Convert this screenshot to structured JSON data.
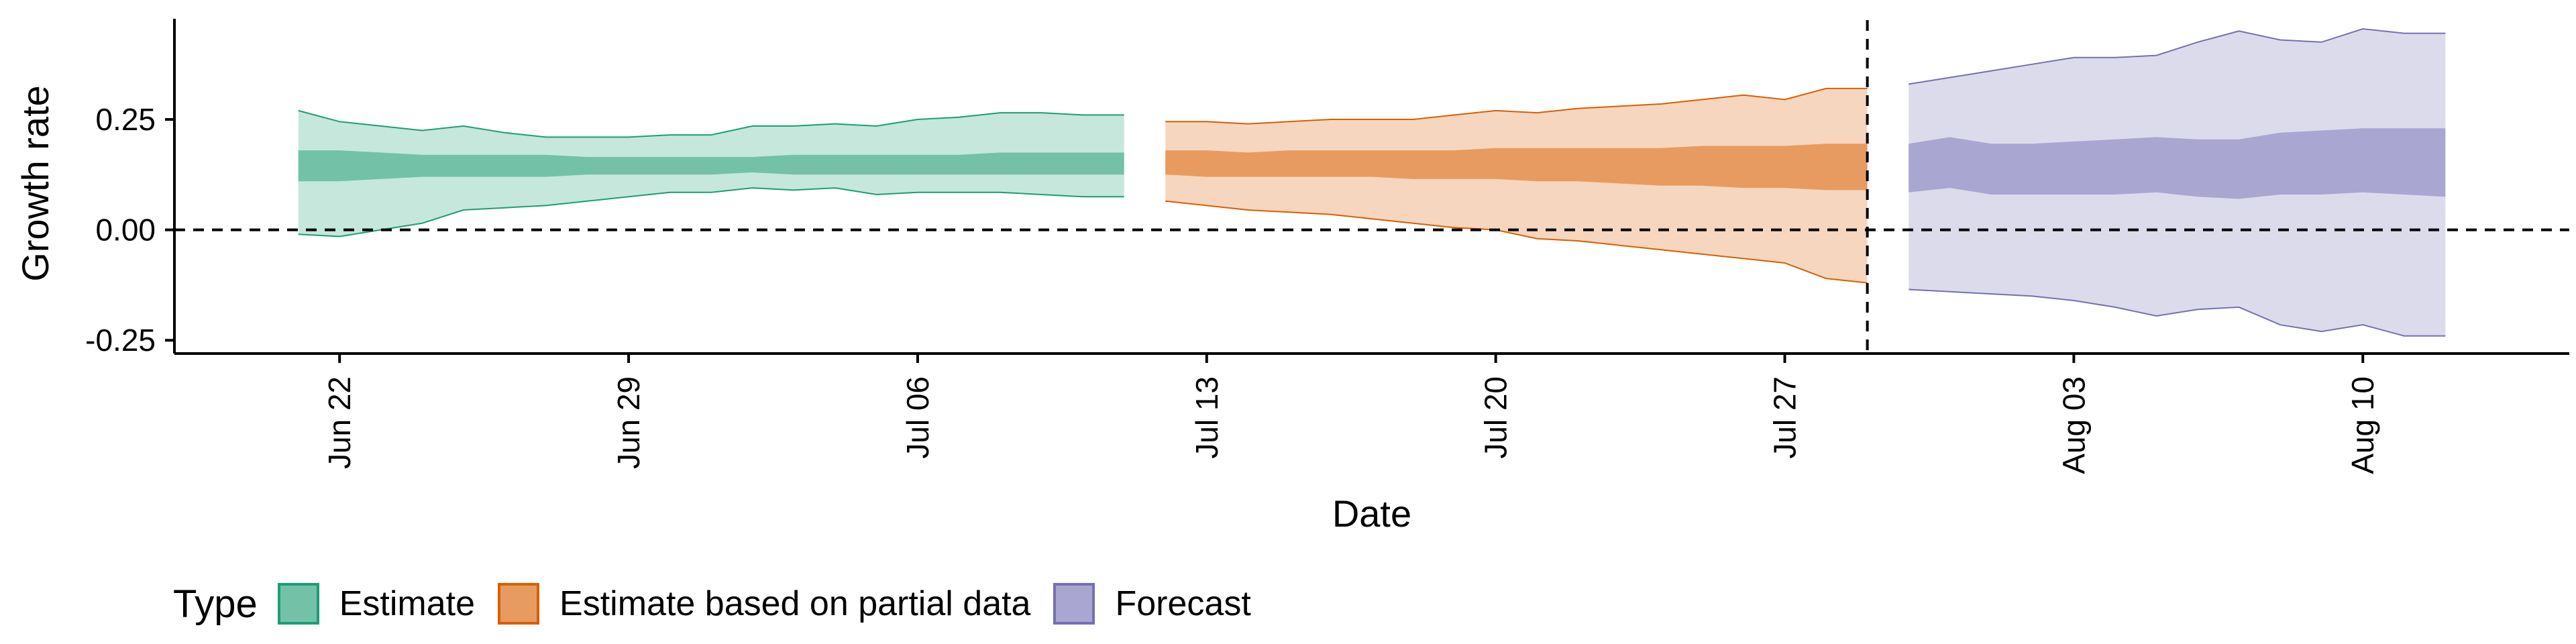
{
  "chart_data": {
    "type": "area",
    "xlabel": "Date",
    "ylabel": "Growth rate",
    "x_tick_labels": [
      "Jun 22",
      "Jun 29",
      "Jul 06",
      "Jul 13",
      "Jul 20",
      "Jul 27",
      "Aug 03",
      "Aug 10"
    ],
    "x_tick_dates": [
      "2020-06-22",
      "2020-06-29",
      "2020-07-06",
      "2020-07-13",
      "2020-07-20",
      "2020-07-27",
      "2020-08-03",
      "2020-08-10"
    ],
    "xlim": [
      "2020-06-18",
      "2020-08-15"
    ],
    "y_ticks": [
      -0.25,
      0.0,
      0.25
    ],
    "y_tick_labels": [
      "-0.25",
      "0.00",
      "0.25"
    ],
    "ylim": [
      -0.28,
      0.49
    ],
    "reference_lines": {
      "horizontal_y": 0,
      "vertical_x": "2020-07-29"
    },
    "grid": false,
    "legend": {
      "title": "Type",
      "position": "bottom-left"
    },
    "series": [
      {
        "name": "Estimate",
        "fill_color": "#1b9e77",
        "light_fill_color": "#c6e7dc",
        "mid_fill_color": "#73c2a8",
        "x": [
          "2020-06-21",
          "2020-06-22",
          "2020-06-23",
          "2020-06-24",
          "2020-06-25",
          "2020-06-26",
          "2020-06-27",
          "2020-06-28",
          "2020-06-29",
          "2020-06-30",
          "2020-07-01",
          "2020-07-02",
          "2020-07-03",
          "2020-07-04",
          "2020-07-05",
          "2020-07-06",
          "2020-07-07",
          "2020-07-08",
          "2020-07-09",
          "2020-07-10",
          "2020-07-11"
        ],
        "lower_90": [
          -0.01,
          -0.015,
          0.0,
          0.015,
          0.045,
          0.05,
          0.055,
          0.065,
          0.075,
          0.085,
          0.085,
          0.095,
          0.09,
          0.095,
          0.08,
          0.085,
          0.085,
          0.085,
          0.08,
          0.075,
          0.075
        ],
        "upper_90": [
          0.27,
          0.245,
          0.235,
          0.225,
          0.235,
          0.22,
          0.21,
          0.21,
          0.21,
          0.215,
          0.215,
          0.235,
          0.235,
          0.24,
          0.235,
          0.25,
          0.255,
          0.265,
          0.265,
          0.26,
          0.26
        ],
        "lower_50": [
          0.11,
          0.11,
          0.115,
          0.12,
          0.12,
          0.12,
          0.12,
          0.125,
          0.125,
          0.125,
          0.125,
          0.13,
          0.125,
          0.125,
          0.125,
          0.125,
          0.125,
          0.125,
          0.125,
          0.125,
          0.125
        ],
        "upper_50": [
          0.18,
          0.18,
          0.175,
          0.17,
          0.17,
          0.17,
          0.17,
          0.165,
          0.165,
          0.165,
          0.165,
          0.165,
          0.17,
          0.17,
          0.17,
          0.17,
          0.17,
          0.175,
          0.175,
          0.175,
          0.175
        ]
      },
      {
        "name": "Estimate based on partial data",
        "fill_color": "#d95f02",
        "light_fill_color": "#f6d6bf",
        "mid_fill_color": "#e89b60",
        "x": [
          "2020-07-12",
          "2020-07-13",
          "2020-07-14",
          "2020-07-15",
          "2020-07-16",
          "2020-07-17",
          "2020-07-18",
          "2020-07-19",
          "2020-07-20",
          "2020-07-21",
          "2020-07-22",
          "2020-07-23",
          "2020-07-24",
          "2020-07-25",
          "2020-07-26",
          "2020-07-27",
          "2020-07-28",
          "2020-07-29"
        ],
        "lower_90": [
          0.065,
          0.055,
          0.045,
          0.04,
          0.035,
          0.025,
          0.015,
          0.005,
          0.0,
          -0.02,
          -0.025,
          -0.035,
          -0.045,
          -0.055,
          -0.065,
          -0.075,
          -0.11,
          -0.12
        ],
        "upper_90": [
          0.245,
          0.245,
          0.24,
          0.245,
          0.25,
          0.25,
          0.25,
          0.26,
          0.27,
          0.265,
          0.275,
          0.28,
          0.285,
          0.295,
          0.305,
          0.295,
          0.32,
          0.32
        ],
        "lower_50": [
          0.125,
          0.12,
          0.12,
          0.12,
          0.12,
          0.12,
          0.115,
          0.115,
          0.115,
          0.11,
          0.11,
          0.105,
          0.1,
          0.1,
          0.095,
          0.095,
          0.09,
          0.09
        ],
        "upper_50": [
          0.18,
          0.18,
          0.175,
          0.18,
          0.18,
          0.18,
          0.18,
          0.18,
          0.185,
          0.185,
          0.185,
          0.185,
          0.185,
          0.19,
          0.19,
          0.19,
          0.195,
          0.195
        ]
      },
      {
        "name": "Forecast",
        "fill_color": "#7570b3",
        "light_fill_color": "#dcdbec",
        "mid_fill_color": "#a9a6d2",
        "x": [
          "2020-07-30",
          "2020-07-31",
          "2020-08-01",
          "2020-08-02",
          "2020-08-03",
          "2020-08-04",
          "2020-08-05",
          "2020-08-06",
          "2020-08-07",
          "2020-08-08",
          "2020-08-09",
          "2020-08-10",
          "2020-08-11",
          "2020-08-12"
        ],
        "lower_90": [
          -0.135,
          -0.14,
          -0.145,
          -0.15,
          -0.16,
          -0.175,
          -0.195,
          -0.18,
          -0.175,
          -0.215,
          -0.23,
          -0.215,
          -0.24,
          -0.24
        ],
        "upper_90": [
          0.33,
          0.345,
          0.36,
          0.375,
          0.39,
          0.39,
          0.395,
          0.425,
          0.45,
          0.43,
          0.425,
          0.455,
          0.445,
          0.445
        ],
        "lower_50": [
          0.085,
          0.095,
          0.08,
          0.08,
          0.08,
          0.08,
          0.085,
          0.075,
          0.07,
          0.08,
          0.08,
          0.085,
          0.08,
          0.075
        ],
        "upper_50": [
          0.195,
          0.21,
          0.195,
          0.195,
          0.2,
          0.205,
          0.21,
          0.205,
          0.205,
          0.22,
          0.225,
          0.23,
          0.23,
          0.23
        ]
      }
    ]
  }
}
